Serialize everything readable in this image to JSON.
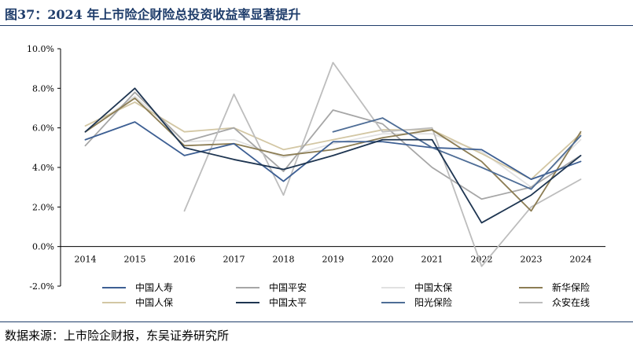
{
  "title": "图37：2024 年上市险企财险总投资收益率显著提升",
  "source": "数据来源：上市险企财报，东吴证券研究所",
  "chart_data": {
    "type": "line",
    "x": [
      "2014",
      "2015",
      "2016",
      "2017",
      "2018",
      "2019",
      "2020",
      "2021",
      "2022",
      "2023",
      "2024"
    ],
    "ylim": [
      -2.0,
      10.0
    ],
    "yticks": [
      "-2.0%",
      "0.0%",
      "2.0%",
      "4.0%",
      "6.0%",
      "8.0%",
      "10.0%"
    ],
    "legend_position": "bottom",
    "grid": false,
    "series": [
      {
        "name": "中国人寿",
        "color": "#3d5f93",
        "width": 1.8,
        "values": [
          5.4,
          6.3,
          4.6,
          5.2,
          3.3,
          5.3,
          5.3,
          5.0,
          4.9,
          3.4,
          4.3
        ]
      },
      {
        "name": "中国平安",
        "color": "#a6a6a6",
        "width": 1.8,
        "values": [
          5.1,
          7.8,
          5.3,
          6.0,
          3.8,
          6.9,
          6.2,
          4.0,
          2.4,
          3.0,
          4.6
        ]
      },
      {
        "name": "中国太保",
        "color": "#e1e1e1",
        "width": 1.8,
        "values": [
          5.8,
          7.6,
          5.3,
          5.4,
          4.5,
          5.2,
          5.7,
          5.7,
          4.8,
          3.0,
          5.4
        ]
      },
      {
        "name": "新华保险",
        "color": "#8c7d54",
        "width": 1.8,
        "values": [
          5.8,
          7.5,
          5.1,
          5.2,
          4.6,
          4.9,
          5.5,
          5.9,
          4.3,
          1.8,
          5.8
        ]
      },
      {
        "name": "中国人保",
        "color": "#d3c7a4",
        "width": 1.8,
        "values": [
          6.1,
          7.3,
          5.8,
          6.0,
          4.9,
          5.4,
          5.9,
          5.9,
          4.7,
          3.4,
          5.7
        ]
      },
      {
        "name": "中国太平",
        "color": "#1e3551",
        "width": 1.8,
        "values": [
          5.8,
          8.0,
          5.0,
          4.4,
          3.9,
          4.6,
          5.4,
          5.4,
          1.2,
          2.6,
          4.6
        ]
      },
      {
        "name": "阳光保险",
        "color": "#4e6d96",
        "width": 1.8,
        "values": [
          null,
          null,
          null,
          null,
          null,
          5.8,
          6.5,
          5.0,
          4.0,
          2.9,
          5.6
        ]
      },
      {
        "name": "众安在线",
        "color": "#bdbdbd",
        "width": 1.8,
        "values": [
          null,
          null,
          1.8,
          7.7,
          2.6,
          9.3,
          5.8,
          6.0,
          -1.0,
          2.0,
          3.4
        ]
      }
    ]
  }
}
